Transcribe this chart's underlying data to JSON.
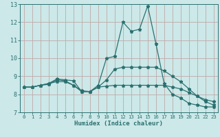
{
  "xlabel": "Humidex (Indice chaleur)",
  "bg_color": "#cce8e8",
  "grid_color": "#c0a8a8",
  "line_color": "#2a7070",
  "xlim": [
    -0.5,
    23.5
  ],
  "ylim": [
    7,
    13
  ],
  "xticks": [
    0,
    1,
    2,
    3,
    4,
    5,
    6,
    7,
    8,
    9,
    10,
    11,
    12,
    13,
    14,
    15,
    16,
    17,
    18,
    19,
    20,
    21,
    22,
    23
  ],
  "yticks": [
    7,
    8,
    9,
    10,
    11,
    12,
    13
  ],
  "line1_x": [
    0,
    1,
    2,
    3,
    4,
    5,
    6,
    7,
    8,
    9,
    10,
    11,
    12,
    13,
    14,
    15,
    16,
    17,
    18,
    19,
    20,
    21,
    22,
    23
  ],
  "line1_y": [
    8.4,
    8.4,
    8.5,
    8.6,
    8.85,
    8.8,
    8.75,
    8.15,
    8.15,
    8.5,
    10.0,
    10.1,
    12.0,
    11.5,
    11.6,
    12.9,
    10.8,
    8.6,
    8.0,
    7.8,
    7.5,
    7.4,
    7.3,
    7.3
  ],
  "line2_x": [
    0,
    1,
    2,
    3,
    4,
    5,
    6,
    7,
    8,
    9,
    10,
    11,
    12,
    13,
    14,
    15,
    16,
    17,
    18,
    19,
    20,
    21,
    22,
    23
  ],
  "line2_y": [
    8.4,
    8.4,
    8.5,
    8.6,
    8.7,
    8.7,
    8.5,
    8.2,
    8.15,
    8.4,
    8.45,
    8.5,
    8.5,
    8.5,
    8.5,
    8.5,
    8.5,
    8.5,
    8.4,
    8.3,
    8.1,
    7.9,
    7.7,
    7.6
  ],
  "line3_x": [
    0,
    1,
    2,
    3,
    4,
    5,
    6,
    7,
    8,
    9,
    10,
    11,
    12,
    13,
    14,
    15,
    16,
    17,
    18,
    19,
    20,
    21,
    22,
    23
  ],
  "line3_y": [
    8.4,
    8.4,
    8.5,
    8.55,
    8.8,
    8.75,
    8.5,
    8.15,
    8.15,
    8.4,
    8.8,
    9.4,
    9.5,
    9.5,
    9.5,
    9.5,
    9.5,
    9.3,
    9.0,
    8.7,
    8.3,
    7.9,
    7.6,
    7.4
  ]
}
